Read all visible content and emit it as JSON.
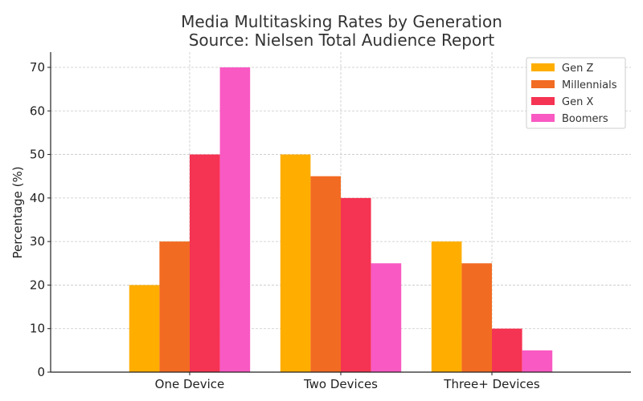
{
  "chart_data": {
    "type": "bar",
    "title": "Media Multitasking Rates by Generation",
    "subtitle": "Source: Nielsen Total Audience Report",
    "xlabel": "",
    "ylabel": "Percentage (%)",
    "categories": [
      "One Device",
      "Two Devices",
      "Three+ Devices"
    ],
    "series": [
      {
        "name": "Gen Z",
        "values": [
          20,
          50,
          30
        ],
        "color": "#FFAE00"
      },
      {
        "name": "Millennials",
        "values": [
          30,
          45,
          25
        ],
        "color": "#F26B22"
      },
      {
        "name": "Gen X",
        "values": [
          50,
          40,
          10
        ],
        "color": "#F53352"
      },
      {
        "name": "Boomers",
        "values": [
          70,
          25,
          5
        ],
        "color": "#F959C2"
      }
    ],
    "ylim": [
      0,
      73.5
    ],
    "yticks": [
      0,
      10,
      20,
      30,
      40,
      50,
      60,
      70
    ],
    "grid": true,
    "legend": "top-right"
  }
}
